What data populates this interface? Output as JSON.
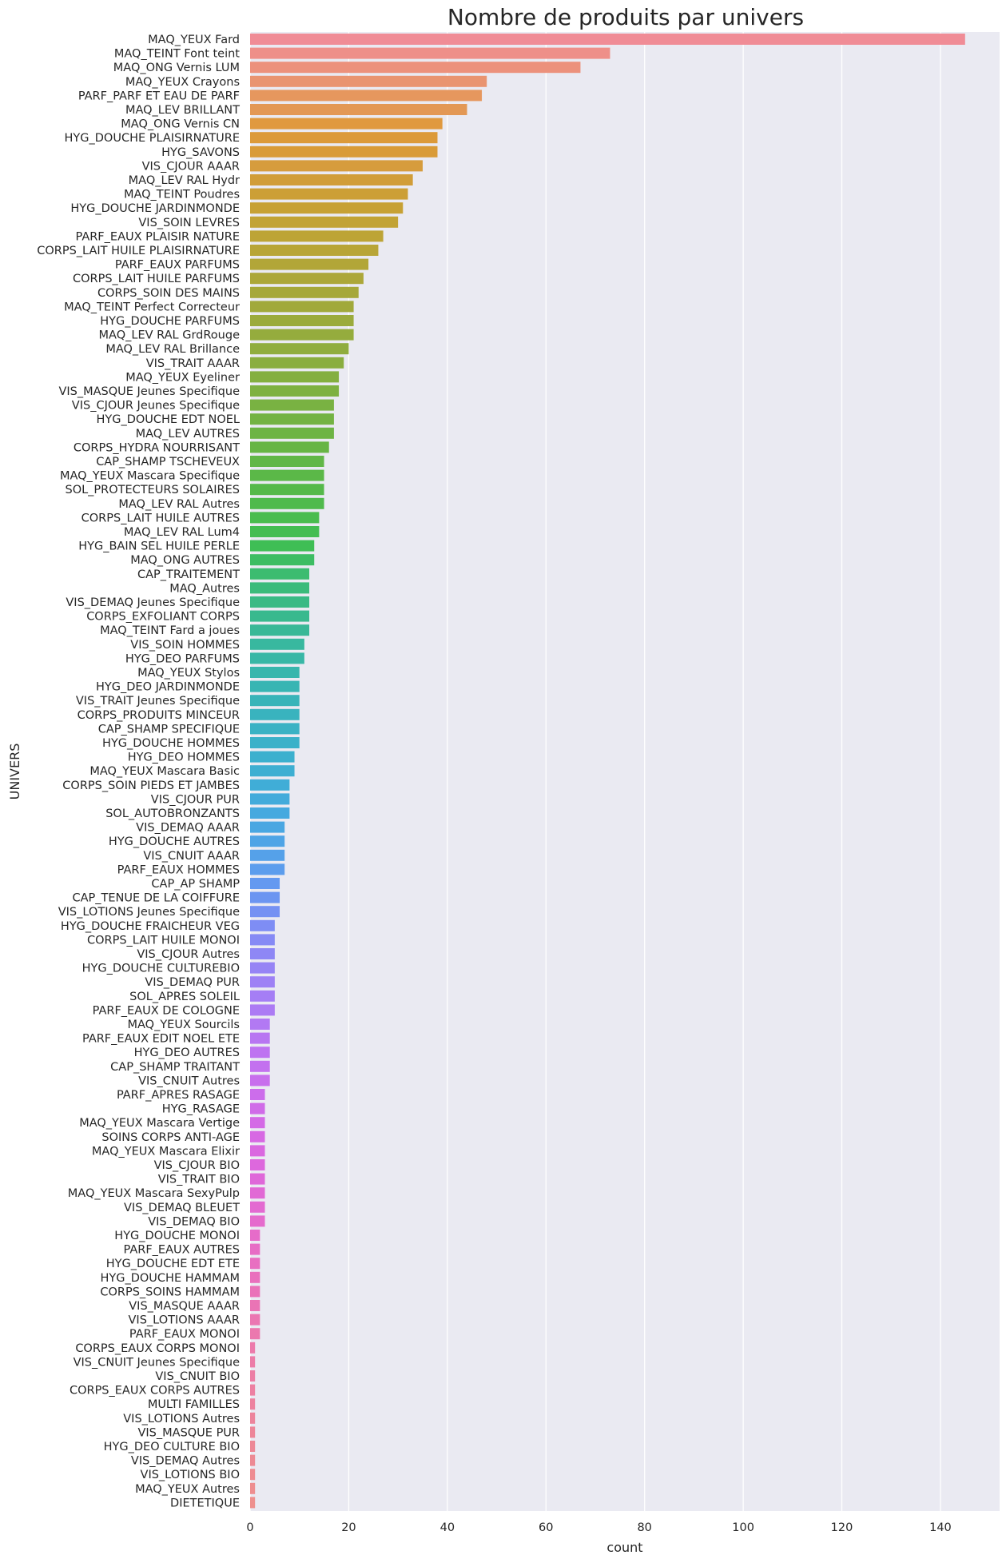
{
  "chart_data": {
    "type": "bar",
    "orientation": "horizontal",
    "title": "Nombre de produits par univers",
    "xlabel": "count",
    "ylabel": "UNIVERS",
    "xlim": [
      0,
      152
    ],
    "xticks": [
      0,
      20,
      40,
      60,
      80,
      100,
      120,
      140
    ],
    "grid": true,
    "background": "#eaeaf2",
    "categories": [
      "MAQ_YEUX Fard",
      "MAQ_TEINT Font teint",
      "MAQ_ONG Vernis LUM",
      "MAQ_YEUX Crayons",
      "PARF_PARF ET EAU DE PARF",
      "MAQ_LEV BRILLANT",
      "MAQ_ONG Vernis CN",
      "HYG_DOUCHE PLAISIRNATURE",
      "HYG_SAVONS",
      "VIS_CJOUR AAAR",
      "MAQ_LEV RAL Hydr",
      "MAQ_TEINT Poudres",
      "HYG_DOUCHE JARDINMONDE",
      "VIS_SOIN LEVRES",
      "PARF_EAUX PLAISIR NATURE",
      "CORPS_LAIT HUILE PLAISIRNATURE",
      "PARF_EAUX PARFUMS",
      "CORPS_LAIT HUILE PARFUMS",
      "CORPS_SOIN DES MAINS",
      "MAQ_TEINT Perfect Correcteur",
      "HYG_DOUCHE PARFUMS",
      "MAQ_LEV RAL GrdRouge",
      "MAQ_LEV RAL Brillance",
      "VIS_TRAIT AAAR",
      "MAQ_YEUX Eyeliner",
      "VIS_MASQUE Jeunes Specifique",
      "VIS_CJOUR Jeunes Specifique",
      "HYG_DOUCHE EDT NOEL",
      "MAQ_LEV AUTRES",
      "CORPS_HYDRA NOURRISANT",
      "CAP_SHAMP TSCHEVEUX",
      "MAQ_YEUX Mascara Specifique",
      "SOL_PROTECTEURS SOLAIRES",
      "MAQ_LEV RAL Autres",
      "CORPS_LAIT HUILE AUTRES",
      "MAQ_LEV RAL Lum4",
      "HYG_BAIN SEL HUILE PERLE",
      "MAQ_ONG AUTRES",
      "CAP_TRAITEMENT",
      "MAQ_Autres",
      "VIS_DEMAQ Jeunes Specifique",
      "CORPS_EXFOLIANT CORPS",
      "MAQ_TEINT Fard a joues",
      "VIS_SOIN HOMMES",
      "HYG_DEO PARFUMS",
      "MAQ_YEUX Stylos",
      "HYG_DEO JARDINMONDE",
      "VIS_TRAIT Jeunes Specifique",
      "CORPS_PRODUITS MINCEUR",
      "CAP_SHAMP SPECIFIQUE",
      "HYG_DOUCHE HOMMES",
      "HYG_DEO HOMMES",
      "MAQ_YEUX Mascara Basic",
      "CORPS_SOIN PIEDS ET JAMBES",
      "VIS_CJOUR PUR",
      "SOL_AUTOBRONZANTS",
      "VIS_DEMAQ AAAR",
      "HYG_DOUCHE AUTRES",
      "VIS_CNUIT AAAR",
      "PARF_EAUX HOMMES",
      "CAP_AP SHAMP",
      "CAP_TENUE DE LA COIFFURE",
      "VIS_LOTIONS Jeunes Specifique",
      "HYG_DOUCHE FRAICHEUR VEG",
      "CORPS_LAIT HUILE MONOI",
      "VIS_CJOUR Autres",
      "HYG_DOUCHE CULTUREBIO",
      "VIS_DEMAQ PUR",
      "SOL_APRES SOLEIL",
      "PARF_EAUX DE COLOGNE",
      "MAQ_YEUX Sourcils",
      "PARF_EAUX EDIT NOEL ETE",
      "HYG_DEO AUTRES",
      "CAP_SHAMP TRAITANT",
      "VIS_CNUIT Autres",
      "PARF_APRES RASAGE",
      "HYG_RASAGE",
      "MAQ_YEUX Mascara Vertige",
      "SOINS CORPS ANTI-AGE",
      "MAQ_YEUX Mascara Elixir",
      "VIS_CJOUR BIO",
      "VIS_TRAIT BIO",
      "MAQ_YEUX Mascara SexyPulp",
      "VIS_DEMAQ BLEUET",
      "VIS_DEMAQ BIO",
      "HYG_DOUCHE MONOI",
      "PARF_EAUX AUTRES",
      "HYG_DOUCHE EDT ETE",
      "HYG_DOUCHE HAMMAM",
      "CORPS_SOINS HAMMAM",
      "VIS_MASQUE AAAR",
      "VIS_LOTIONS AAAR",
      "PARF_EAUX MONOI",
      "CORPS_EAUX CORPS MONOI",
      "VIS_CNUIT Jeunes Specifique",
      "VIS_CNUIT BIO",
      "CORPS_EAUX CORPS AUTRES",
      "MULTI FAMILLES",
      "VIS_LOTIONS Autres",
      "VIS_MASQUE PUR",
      "HYG_DEO CULTURE BIO",
      "VIS_DEMAQ Autres",
      "VIS_LOTIONS BIO",
      "MAQ_YEUX Autres",
      "DIETETIQUE"
    ],
    "values": [
      145,
      73,
      67,
      48,
      47,
      44,
      39,
      38,
      38,
      35,
      33,
      32,
      31,
      30,
      27,
      26,
      24,
      23,
      22,
      21,
      21,
      21,
      20,
      19,
      18,
      18,
      17,
      17,
      17,
      16,
      15,
      15,
      15,
      15,
      14,
      14,
      13,
      13,
      12,
      12,
      12,
      12,
      12,
      11,
      11,
      10,
      10,
      10,
      10,
      10,
      10,
      9,
      9,
      8,
      8,
      8,
      7,
      7,
      7,
      7,
      6,
      6,
      6,
      5,
      5,
      5,
      5,
      5,
      5,
      5,
      4,
      4,
      4,
      4,
      4,
      3,
      3,
      3,
      3,
      3,
      3,
      3,
      3,
      3,
      3,
      2,
      2,
      2,
      2,
      2,
      2,
      2,
      2,
      1,
      1,
      1,
      1,
      1,
      1,
      1,
      1,
      1,
      1,
      1,
      1
    ],
    "colors": [
      "#f08c96",
      "#ee8f89",
      "#ec917c",
      "#e99470",
      "#e6975e",
      "#e39855",
      "#e0993f",
      "#dc9a3a",
      "#d99b38",
      "#d69c3d",
      "#d19d38",
      "#cc9f36",
      "#c7a134",
      "#c2a335",
      "#bda436",
      "#b8a537",
      "#b2a638",
      "#aca739",
      "#a6a83a",
      "#a1a93b",
      "#9bab3c",
      "#95ac3d",
      "#90ad3e",
      "#8aae3f",
      "#84af40",
      "#7eb141",
      "#79b242",
      "#73b343",
      "#6db444",
      "#67b545",
      "#61b747",
      "#5bb848",
      "#55b94a",
      "#4fba4c",
      "#4abc4f",
      "#44bd52",
      "#3fbe55",
      "#3dbd63",
      "#3cbc70",
      "#3bbb7b",
      "#3aba85",
      "#39b98e",
      "#39b897",
      "#38b89f",
      "#38b7a6",
      "#38b6ad",
      "#38b5b3",
      "#38b4b9",
      "#39b3be",
      "#3ab2c4",
      "#3bb1c9",
      "#3cb0ce",
      "#3eafd2",
      "#40add7",
      "#43abdb",
      "#46a9df",
      "#4aa7e2",
      "#4fa4e6",
      "#55a1e9",
      "#5c9ded",
      "#6499f0",
      "#6c95f1",
      "#7591f3",
      "#7e8df4",
      "#868af5",
      "#8e87f5",
      "#9684f5",
      "#9e81f5",
      "#a57ef5",
      "#ac7bf4",
      "#b279f3",
      "#b876f2",
      "#be73f1",
      "#c371ef",
      "#c86fed",
      "#cc6deb",
      "#d06be8",
      "#d46ae6",
      "#d769e3",
      "#da68e0",
      "#dd68dd",
      "#df68d9",
      "#e169d5",
      "#e36ad1",
      "#e56bcd",
      "#e66cc9",
      "#e76dc5",
      "#e86fc1",
      "#e970bd",
      "#ea72b9",
      "#ea74b5",
      "#eb76b2",
      "#eb78ae",
      "#ec7aab",
      "#ec7ca8",
      "#ec7ea5",
      "#ed80a2",
      "#ed829f",
      "#ed849c",
      "#ed8699",
      "#ed8896",
      "#ed8a94",
      "#ee8c92",
      "#ee8e90",
      "#ee908e"
    ]
  }
}
